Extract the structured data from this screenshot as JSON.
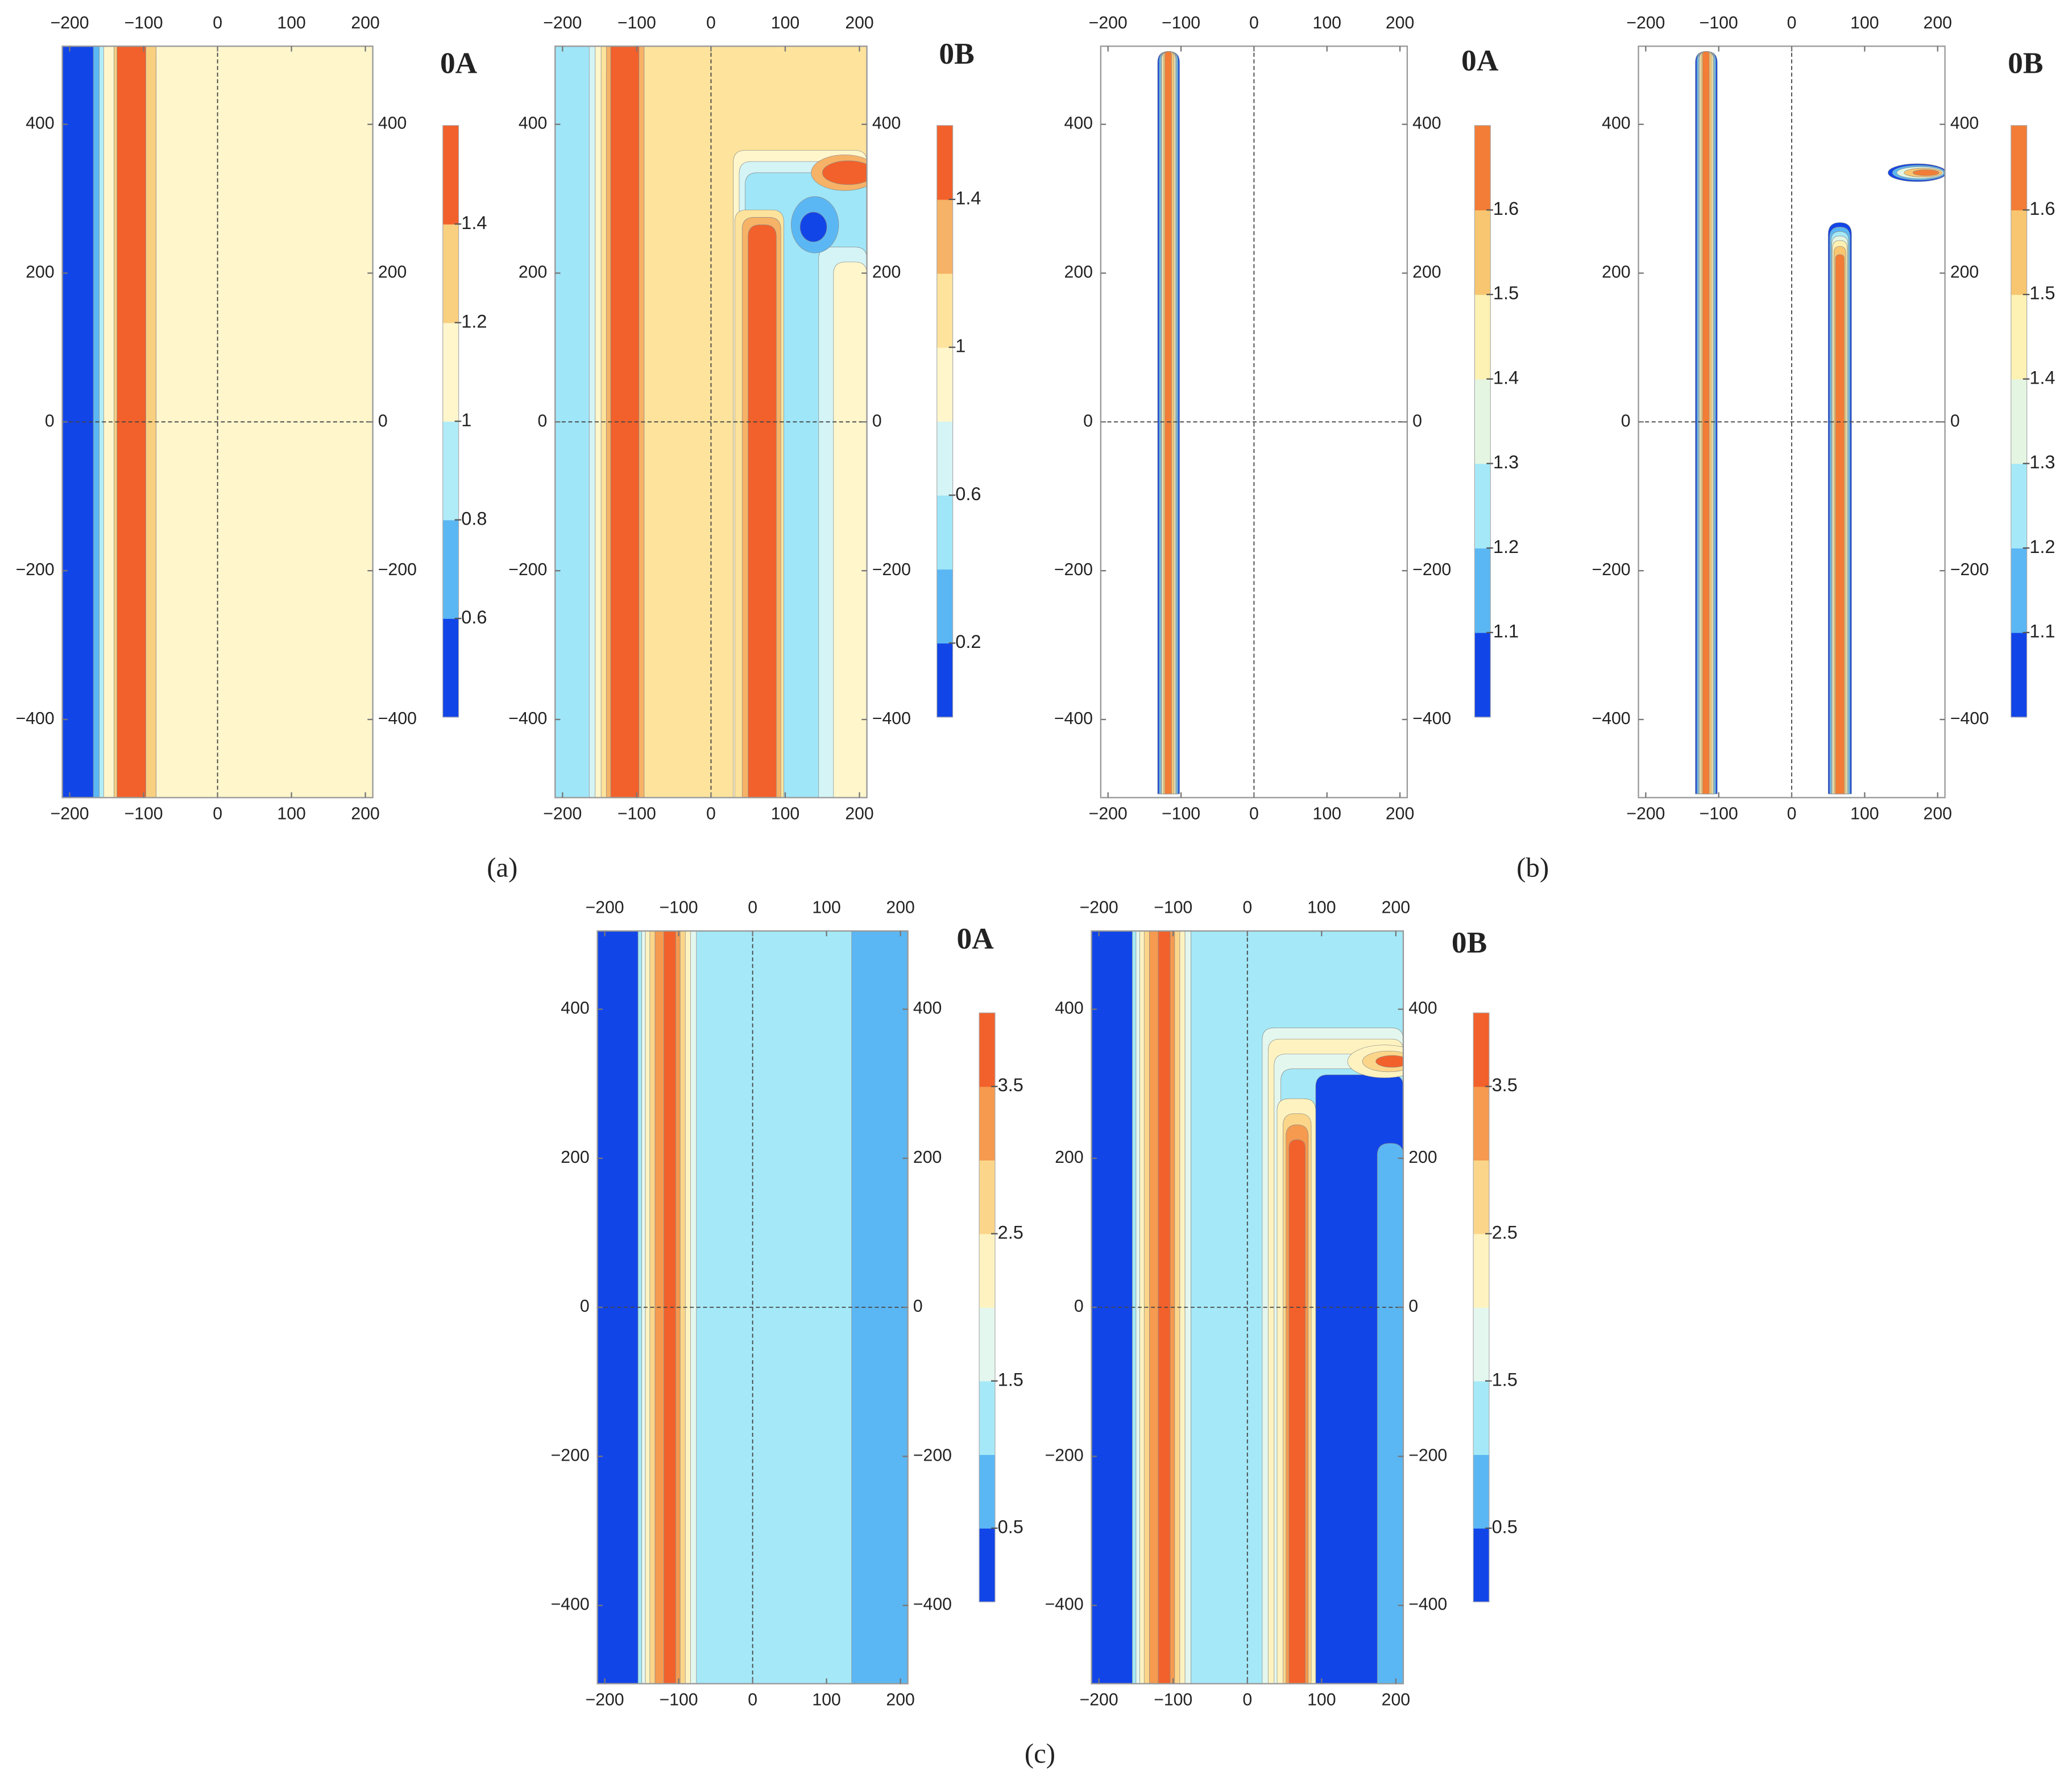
{
  "captions": [
    "(a)",
    "(b)",
    "(c)"
  ],
  "chart_data": [
    {
      "type": "contour",
      "title": "0A",
      "xlim": [
        -210,
        210
      ],
      "ylim": [
        -505,
        505
      ],
      "xticks": [
        {
          "value": -200,
          "label": "−200"
        },
        {
          "value": -100,
          "label": "−100"
        },
        0,
        100,
        200
      ],
      "yticks": [
        {
          "value": -400,
          "label": "−400"
        },
        {
          "value": -200,
          "label": "−200"
        },
        0,
        200,
        400
      ],
      "colorbar": {
        "lim": [
          0.4,
          1.6
        ],
        "ticks": [
          0.6,
          0.8,
          1,
          1.2,
          1.4
        ],
        "colors": [
          "#1245e8",
          "#5bb7f3",
          "#b0ecf8",
          "#fff6cc",
          "#f9cf80",
          "#f2612b"
        ]
      },
      "regions": [
        {
          "x": [
            -210,
            -168
          ],
          "value": 0.5
        },
        {
          "x": [
            -168,
            -160
          ],
          "value": 0.7
        },
        {
          "x": [
            -160,
            -154
          ],
          "value": 0.9
        },
        {
          "x": [
            -154,
            -140
          ],
          "value": 1.1
        },
        {
          "x": [
            -140,
            -136
          ],
          "value": 1.3
        },
        {
          "x": [
            -136,
            -97
          ],
          "value": 1.5
        },
        {
          "x": [
            -97,
            -83
          ],
          "value": 1.3
        },
        {
          "x": [
            -83,
            210
          ],
          "value": 1.1
        }
      ],
      "spots": []
    },
    {
      "type": "contour",
      "title": "0B",
      "xlim": [
        -210,
        210
      ],
      "ylim": [
        -505,
        505
      ],
      "xticks": [
        {
          "value": -200,
          "label": "−200"
        },
        {
          "value": -100,
          "label": "−100"
        },
        0,
        100,
        200
      ],
      "yticks": [
        {
          "value": -400,
          "label": "−400"
        },
        {
          "value": -200,
          "label": "−200"
        },
        0,
        200,
        400
      ],
      "colorbar": {
        "lim": [
          0,
          1.6
        ],
        "ticks": [
          0.2,
          0.6,
          1,
          1.4
        ],
        "colors": [
          "#1245e8",
          "#5bb7f3",
          "#9fe6f8",
          "#d4f4f6",
          "#fff6cc",
          "#fde39c",
          "#f6b266",
          "#f2612b"
        ]
      },
      "regions": [
        {
          "x": [
            -210,
            -164
          ],
          "value": 0.5
        },
        {
          "x": [
            -164,
            -156
          ],
          "value": 0.7
        },
        {
          "x": [
            -156,
            -148
          ],
          "value": 0.9
        },
        {
          "x": [
            -148,
            -141
          ],
          "value": 1.1
        },
        {
          "x": [
            -141,
            -135
          ],
          "value": 1.3
        },
        {
          "x": [
            -135,
            -97
          ],
          "value": 1.5
        },
        {
          "x": [
            -97,
            -90
          ],
          "value": 1.3
        },
        {
          "x": [
            -90,
            210
          ],
          "value": 1.1
        },
        {
          "x": [
            30,
            210
          ],
          "y": [
            -505,
            365
          ],
          "value": 0.9
        },
        {
          "x": [
            38,
            210
          ],
          "y": [
            -505,
            350
          ],
          "value": 0.7
        },
        {
          "x": [
            46,
            210
          ],
          "y": [
            -505,
            335
          ],
          "value": 0.5
        },
        {
          "x": [
            32,
            98
          ],
          "y": [
            -505,
            285
          ],
          "value": 1.1
        },
        {
          "x": [
            42,
            94
          ],
          "y": [
            -505,
            275
          ],
          "value": 1.3
        },
        {
          "x": [
            50,
            88
          ],
          "y": [
            -505,
            265
          ],
          "value": 1.5
        },
        {
          "x": [
            145,
            210
          ],
          "y": [
            -505,
            235
          ],
          "value": 0.7
        },
        {
          "x": [
            165,
            210
          ],
          "y": [
            -505,
            215
          ],
          "value": 0.9
        }
      ],
      "spots": [
        {
          "cx": 140,
          "cy": 265,
          "rx": 32,
          "ry": 38,
          "value": 0.3
        },
        {
          "cx": 138,
          "cy": 262,
          "rx": 18,
          "ry": 20,
          "value": 0.1
        },
        {
          "cx": 180,
          "cy": 335,
          "rx": 45,
          "ry": 24,
          "value": 1.3
        },
        {
          "cx": 185,
          "cy": 335,
          "rx": 35,
          "ry": 16,
          "value": 1.5
        }
      ]
    },
    {
      "type": "contour",
      "title": "0A",
      "xlim": [
        -210,
        210
      ],
      "ylim": [
        -505,
        505
      ],
      "xticks": [
        {
          "value": -200,
          "label": "−200"
        },
        {
          "value": -100,
          "label": "−100"
        },
        0,
        100,
        200
      ],
      "yticks": [
        {
          "value": -400,
          "label": "−400"
        },
        {
          "value": -200,
          "label": "−200"
        },
        0,
        200,
        400
      ],
      "colorbar": {
        "lim": [
          1,
          1.7
        ],
        "ticks": [
          1.1,
          1.2,
          1.3,
          1.4,
          1.5,
          1.6
        ],
        "colors": [
          "#1245e8",
          "#5bb7f3",
          "#a5e9f8",
          "#e4f6e2",
          "#fdf1b3",
          "#f8c670",
          "#f37d36"
        ]
      },
      "regions": [
        {
          "x": [
            -132,
            -102
          ],
          "y": [
            -500,
            498
          ],
          "value": 1.05
        },
        {
          "x": [
            -130,
            -104
          ],
          "y": [
            -500,
            498
          ],
          "value": 1.15
        },
        {
          "x": [
            -128,
            -106
          ],
          "y": [
            -500,
            498
          ],
          "value": 1.25
        },
        {
          "x": [
            -127,
            -107
          ],
          "y": [
            -500,
            498
          ],
          "value": 1.35
        },
        {
          "x": [
            -126,
            -108
          ],
          "y": [
            -500,
            498
          ],
          "value": 1.45
        },
        {
          "x": [
            -124,
            -110
          ],
          "y": [
            -500,
            498
          ],
          "value": 1.55
        },
        {
          "x": [
            -122,
            -113
          ],
          "y": [
            -500,
            498
          ],
          "value": 1.65
        }
      ],
      "spots": []
    },
    {
      "type": "contour",
      "title": "0B",
      "xlim": [
        -210,
        210
      ],
      "ylim": [
        -505,
        505
      ],
      "xticks": [
        {
          "value": -200,
          "label": "−200"
        },
        {
          "value": -100,
          "label": "−100"
        },
        0,
        100,
        200
      ],
      "yticks": [
        {
          "value": -400,
          "label": "−400"
        },
        {
          "value": -200,
          "label": "−200"
        },
        0,
        200,
        400
      ],
      "colorbar": {
        "lim": [
          1,
          1.7
        ],
        "ticks": [
          1.1,
          1.2,
          1.3,
          1.4,
          1.5,
          1.6
        ],
        "colors": [
          "#1245e8",
          "#5bb7f3",
          "#a5e9f8",
          "#e4f6e2",
          "#fdf1b3",
          "#f8c670",
          "#f37d36"
        ]
      },
      "regions": [
        {
          "x": [
            -132,
            -102
          ],
          "y": [
            -500,
            498
          ],
          "value": 1.05
        },
        {
          "x": [
            -130,
            -104
          ],
          "y": [
            -500,
            498
          ],
          "value": 1.15
        },
        {
          "x": [
            -128,
            -106
          ],
          "y": [
            -500,
            498
          ],
          "value": 1.25
        },
        {
          "x": [
            -127,
            -107
          ],
          "y": [
            -500,
            498
          ],
          "value": 1.35
        },
        {
          "x": [
            -126,
            -108
          ],
          "y": [
            -500,
            498
          ],
          "value": 1.45
        },
        {
          "x": [
            -124,
            -110
          ],
          "y": [
            -500,
            498
          ],
          "value": 1.55
        },
        {
          "x": [
            -122,
            -113
          ],
          "y": [
            -500,
            498
          ],
          "value": 1.65
        },
        {
          "x": [
            50,
            82
          ],
          "y": [
            -500,
            268
          ],
          "value": 1.05
        },
        {
          "x": [
            52,
            80
          ],
          "y": [
            -500,
            262
          ],
          "value": 1.15
        },
        {
          "x": [
            54,
            78
          ],
          "y": [
            -500,
            256
          ],
          "value": 1.25
        },
        {
          "x": [
            55,
            77
          ],
          "y": [
            -500,
            250
          ],
          "value": 1.35
        },
        {
          "x": [
            56,
            76
          ],
          "y": [
            -500,
            244
          ],
          "value": 1.45
        },
        {
          "x": [
            58,
            74
          ],
          "y": [
            -500,
            236
          ],
          "value": 1.55
        },
        {
          "x": [
            60,
            72
          ],
          "y": [
            -500,
            225
          ],
          "value": 1.65
        }
      ],
      "spots": [
        {
          "cx": 172,
          "cy": 335,
          "rx": 40,
          "ry": 12,
          "value": 1.05
        },
        {
          "cx": 174,
          "cy": 335,
          "rx": 36,
          "ry": 10,
          "value": 1.15
        },
        {
          "cx": 176,
          "cy": 335,
          "rx": 32,
          "ry": 8,
          "value": 1.35
        },
        {
          "cx": 180,
          "cy": 335,
          "rx": 26,
          "ry": 6,
          "value": 1.55
        },
        {
          "cx": 184,
          "cy": 335,
          "rx": 18,
          "ry": 4,
          "value": 1.65
        }
      ]
    },
    {
      "type": "contour",
      "title": "0A",
      "xlim": [
        -210,
        210
      ],
      "ylim": [
        -505,
        505
      ],
      "xticks": [
        {
          "value": -200,
          "label": "−200"
        },
        {
          "value": -100,
          "label": "−100"
        },
        0,
        100,
        200
      ],
      "yticks": [
        {
          "value": -400,
          "label": "−400"
        },
        {
          "value": -200,
          "label": "−200"
        },
        0,
        200,
        400
      ],
      "colorbar": {
        "lim": [
          0,
          4
        ],
        "ticks": [
          0.5,
          1.5,
          2.5,
          3.5
        ],
        "colors": [
          "#1245e8",
          "#5bb7f3",
          "#a5e9f8",
          "#e3f7ee",
          "#fef3c0",
          "#fbd68a",
          "#f59a4f",
          "#f2612b"
        ]
      },
      "regions": [
        {
          "x": [
            -210,
            -155
          ],
          "value": 0.25
        },
        {
          "x": [
            -155,
            -150
          ],
          "value": 1.25
        },
        {
          "x": [
            -150,
            -145
          ],
          "value": 1.75
        },
        {
          "x": [
            -145,
            -139
          ],
          "value": 2.25
        },
        {
          "x": [
            -139,
            -132
          ],
          "value": 2.75
        },
        {
          "x": [
            -132,
            -120
          ],
          "value": 3.25
        },
        {
          "x": [
            -120,
            -104
          ],
          "value": 3.75
        },
        {
          "x": [
            -104,
            -98
          ],
          "value": 3.25
        },
        {
          "x": [
            -98,
            -91
          ],
          "value": 2.75
        },
        {
          "x": [
            -91,
            -84
          ],
          "value": 2.25
        },
        {
          "x": [
            -84,
            -76
          ],
          "value": 1.75
        },
        {
          "x": [
            -76,
            134
          ],
          "value": 1.25
        },
        {
          "x": [
            134,
            210
          ],
          "value": 0.75
        }
      ],
      "spots": []
    },
    {
      "type": "contour",
      "title": "0B",
      "xlim": [
        -210,
        210
      ],
      "ylim": [
        -505,
        505
      ],
      "xticks": [
        {
          "value": -200,
          "label": "−200"
        },
        {
          "value": -100,
          "label": "−100"
        },
        0,
        100,
        200
      ],
      "yticks": [
        {
          "value": -400,
          "label": "−400"
        },
        {
          "value": -200,
          "label": "−200"
        },
        0,
        200,
        400
      ],
      "colorbar": {
        "lim": [
          0,
          4
        ],
        "ticks": [
          0.5,
          1.5,
          2.5,
          3.5
        ],
        "colors": [
          "#1245e8",
          "#5bb7f3",
          "#a5e9f8",
          "#e3f7ee",
          "#fef3c0",
          "#fbd68a",
          "#f59a4f",
          "#f2612b"
        ]
      },
      "regions": [
        {
          "x": [
            -210,
            -155
          ],
          "value": 0.25
        },
        {
          "x": [
            -155,
            -150
          ],
          "value": 1.25
        },
        {
          "x": [
            -150,
            -145
          ],
          "value": 1.75
        },
        {
          "x": [
            -145,
            -139
          ],
          "value": 2.25
        },
        {
          "x": [
            -139,
            -132
          ],
          "value": 2.75
        },
        {
          "x": [
            -132,
            -120
          ],
          "value": 3.25
        },
        {
          "x": [
            -120,
            -104
          ],
          "value": 3.75
        },
        {
          "x": [
            -104,
            -98
          ],
          "value": 3.25
        },
        {
          "x": [
            -98,
            -91
          ],
          "value": 2.75
        },
        {
          "x": [
            -91,
            -84
          ],
          "value": 2.25
        },
        {
          "x": [
            -84,
            -76
          ],
          "value": 1.75
        },
        {
          "x": [
            -76,
            210
          ],
          "value": 1.25
        },
        {
          "x": [
            20,
            210
          ],
          "y": [
            -505,
            375
          ],
          "value": 1.75
        },
        {
          "x": [
            28,
            210
          ],
          "y": [
            -505,
            360
          ],
          "value": 2.25
        },
        {
          "x": [
            36,
            210
          ],
          "y": [
            -505,
            340
          ],
          "value": 1.75
        },
        {
          "x": [
            45,
            210
          ],
          "y": [
            -505,
            320
          ],
          "value": 1.25
        },
        {
          "x": [
            92,
            210
          ],
          "y": [
            -505,
            312
          ],
          "value": 0.25
        },
        {
          "x": [
            40,
            92
          ],
          "y": [
            -505,
            280
          ],
          "value": 2.25
        },
        {
          "x": [
            48,
            86
          ],
          "y": [
            -505,
            260
          ],
          "value": 2.75
        },
        {
          "x": [
            52,
            82
          ],
          "y": [
            -505,
            245
          ],
          "value": 3.25
        },
        {
          "x": [
            56,
            78
          ],
          "y": [
            -505,
            225
          ],
          "value": 3.75
        },
        {
          "x": [
            175,
            210
          ],
          "y": [
            -505,
            220
          ],
          "value": 0.75
        }
      ],
      "spots": [
        {
          "cx": 185,
          "cy": 330,
          "rx": 50,
          "ry": 22,
          "value": 2.25
        },
        {
          "cx": 190,
          "cy": 330,
          "rx": 35,
          "ry": 14,
          "value": 2.75
        },
        {
          "cx": 195,
          "cy": 330,
          "rx": 22,
          "ry": 8,
          "value": 3.75
        }
      ]
    }
  ]
}
